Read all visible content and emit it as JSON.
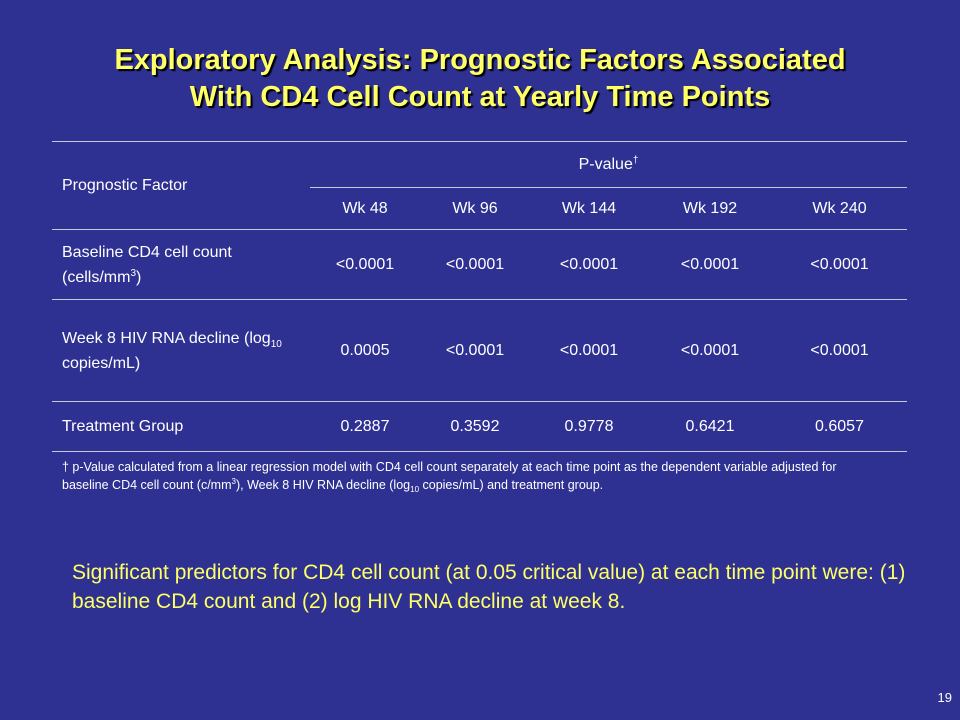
{
  "title": {
    "line1": "Exploratory Analysis: Prognostic Factors Associated",
    "line2": "With CD4 Cell Count at Yearly Time Points"
  },
  "table": {
    "header_factor": "Prognostic Factor",
    "header_pvalue": "P-value",
    "header_pvalue_mark": "†",
    "weeks": [
      "Wk 48",
      "Wk 96",
      "Wk 144",
      "Wk 192",
      "Wk 240"
    ],
    "rows": [
      {
        "label_a": "Baseline CD4 cell count (cells/mm",
        "label_sup": "3",
        "label_b": ")",
        "values": [
          "<0.0001",
          "<0.0001",
          "<0.0001",
          "<0.0001",
          "<0.0001"
        ]
      },
      {
        "label_a": "Week 8 HIV RNA decline (log",
        "label_sub": "10",
        "label_b": " copies/mL)",
        "values": [
          "0.0005",
          "<0.0001",
          "<0.0001",
          "<0.0001",
          "<0.0001"
        ]
      },
      {
        "label_a": "Treatment Group",
        "values": [
          "0.2887",
          "0.3592",
          "0.9778",
          "0.6421",
          "0.6057"
        ]
      }
    ]
  },
  "footnote": {
    "part1": "† p-Value calculated  from a linear regression model with CD4 cell count separately at each time point as the dependent variable adjusted for baseline CD4 cell count (c/mm",
    "sup": "3",
    "part2": "), Week 8  HIV RNA decline (log",
    "sub": "10",
    "part3": " copies/mL) and treatment group."
  },
  "summary": "Significant predictors for CD4 cell count (at 0.05 critical value) at each time point were:  (1) baseline CD4 count and (2) log HIV RNA decline at week 8.",
  "page_number": "19",
  "colors": {
    "background": "#2e3192",
    "title": "#ffff66",
    "summary": "#ffff66",
    "text": "#ffffff"
  }
}
